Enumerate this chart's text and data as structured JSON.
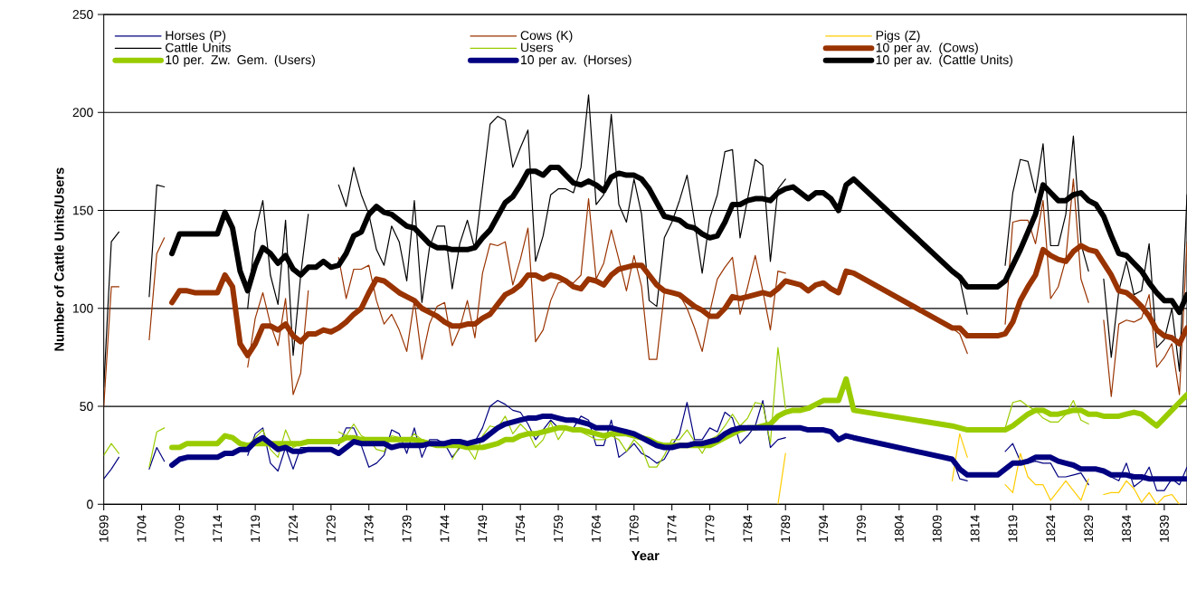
{
  "chart_data": {
    "type": "line",
    "xlabel": "Year",
    "ylabel": "Number of Cattle Units/Users",
    "xlim": [
      1699,
      1842
    ],
    "ylim": [
      0,
      250
    ],
    "xticks": [
      1699,
      1704,
      1709,
      1714,
      1719,
      1724,
      1729,
      1734,
      1739,
      1744,
      1749,
      1754,
      1759,
      1764,
      1769,
      1774,
      1779,
      1784,
      1789,
      1794,
      1799,
      1804,
      1809,
      1814,
      1819,
      1824,
      1829,
      1834,
      1839
    ],
    "yticks": [
      0,
      50,
      100,
      150,
      200,
      250
    ],
    "grid": "y",
    "legend": "top",
    "x": [
      1708,
      1709,
      1710,
      1711,
      1712,
      1713,
      1714,
      1715,
      1716,
      1717,
      1718,
      1719,
      1720,
      1721,
      1722,
      1723,
      1724,
      1725,
      1726,
      1727,
      1728,
      1729,
      1730,
      1731,
      1732,
      1733,
      1734,
      1735,
      1736,
      1737,
      1738,
      1739,
      1740,
      1741,
      1742,
      1743,
      1744,
      1745,
      1746,
      1747,
      1748,
      1749,
      1750,
      1751,
      1752,
      1753,
      1754,
      1755,
      1756,
      1757,
      1758,
      1759,
      1760,
      1761,
      1762,
      1763,
      1764,
      1765,
      1766,
      1767,
      1768,
      1769,
      1770,
      1771,
      1772,
      1773,
      1774,
      1775,
      1776,
      1777,
      1778,
      1779,
      1780,
      1781,
      1782,
      1783,
      1784,
      1785,
      1786,
      1787,
      1788,
      1789,
      1790,
      1791,
      1792,
      1793,
      1794,
      1795,
      1796,
      1797,
      1798,
      1811,
      1812,
      1813,
      1814,
      1815,
      1816,
      1817,
      1818,
      1819,
      1820,
      1821,
      1822,
      1823,
      1824,
      1825,
      1826,
      1827,
      1828,
      1829,
      1830,
      1831,
      1832,
      1833,
      1834,
      1835,
      1836,
      1837,
      1838,
      1839,
      1840,
      1841,
      1842
    ],
    "series": [
      {
        "name": "Horses (P)",
        "color": "#000080",
        "x": [
          1699,
          1700,
          1701,
          1702,
          1705,
          1706,
          1707,
          1708,
          1718,
          1719,
          1720,
          1721,
          1722,
          1723,
          1724,
          1725,
          1726,
          1728,
          1730,
          1731,
          1732,
          1733,
          1734,
          1735,
          1736,
          1737,
          1738,
          1739,
          1740,
          1741,
          1742,
          1743,
          1744,
          1745,
          1746,
          1747,
          1748,
          1749,
          1750,
          1751,
          1752,
          1753,
          1754,
          1755,
          1756,
          1757,
          1758,
          1759,
          1760,
          1761,
          1762,
          1763,
          1764,
          1765,
          1766,
          1767,
          1768,
          1769,
          1770,
          1771,
          1772,
          1773,
          1774,
          1775,
          1776,
          1777,
          1778,
          1779,
          1780,
          1781,
          1782,
          1783,
          1784,
          1785,
          1786,
          1787,
          1788,
          1789,
          1800,
          1811,
          1812,
          1813,
          1815,
          1818,
          1819,
          1820,
          1821,
          1822,
          1823,
          1824,
          1825,
          1826,
          1827,
          1828,
          1829,
          1830,
          1832,
          1833,
          1834,
          1835,
          1836,
          1837,
          1838,
          1839,
          1840,
          1841,
          1842
        ],
        "values": [
          13,
          18,
          24,
          null,
          18,
          29,
          22,
          null,
          25,
          36,
          39,
          21,
          17,
          29,
          18,
          29,
          29,
          null,
          30,
          39,
          39,
          30,
          19,
          21,
          25,
          38,
          36,
          26,
          39,
          24,
          33,
          33,
          31,
          24,
          29,
          32,
          32,
          39,
          50,
          53,
          51,
          48,
          47,
          41,
          33,
          38,
          43,
          39,
          null,
          39,
          45,
          43,
          30,
          30,
          43,
          24,
          27,
          31,
          26,
          24,
          21,
          23,
          30,
          36,
          52,
          33,
          33,
          39,
          37,
          47,
          44,
          31,
          35,
          40,
          53,
          29,
          33,
          34,
          null,
          24,
          13,
          12,
          null,
          27,
          31,
          22,
          21,
          22,
          21,
          21,
          14,
          14,
          15,
          16,
          10,
          null,
          14,
          12,
          21,
          9,
          12,
          19,
          7,
          7,
          13,
          10,
          19
        ]
      },
      {
        "name": "Cows (K)",
        "color": "#993300",
        "x": [
          1699,
          1700,
          1701,
          1702,
          1705,
          1706,
          1707,
          1708,
          1718,
          1719,
          1720,
          1721,
          1722,
          1723,
          1724,
          1725,
          1726,
          1728,
          1730,
          1731,
          1732,
          1733,
          1734,
          1735,
          1736,
          1737,
          1738,
          1739,
          1740,
          1741,
          1742,
          1743,
          1744,
          1745,
          1746,
          1747,
          1748,
          1749,
          1750,
          1751,
          1752,
          1753,
          1754,
          1755,
          1756,
          1757,
          1758,
          1759,
          1760,
          1761,
          1762,
          1763,
          1764,
          1765,
          1766,
          1767,
          1768,
          1769,
          1770,
          1771,
          1772,
          1773,
          1774,
          1775,
          1776,
          1777,
          1778,
          1779,
          1780,
          1781,
          1782,
          1783,
          1784,
          1785,
          1786,
          1787,
          1788,
          1789,
          1800,
          1811,
          1812,
          1813,
          1815,
          1818,
          1819,
          1820,
          1821,
          1822,
          1823,
          1824,
          1825,
          1826,
          1827,
          1828,
          1829,
          1830,
          1831,
          1832,
          1833,
          1834,
          1835,
          1836,
          1837,
          1838,
          1839,
          1840,
          1841,
          1842
        ],
        "values": [
          50,
          111,
          111,
          null,
          84,
          128,
          136,
          null,
          70,
          95,
          108,
          92,
          81,
          105,
          56,
          67,
          109,
          null,
          126,
          105,
          120,
          120,
          122,
          104,
          92,
          97,
          89,
          78,
          104,
          74,
          92,
          101,
          103,
          81,
          90,
          104,
          85,
          118,
          133,
          132,
          134,
          112,
          125,
          141,
          83,
          89,
          104,
          113,
          114,
          113,
          117,
          156,
          115,
          123,
          140,
          125,
          109,
          127,
          111,
          74,
          74,
          108,
          108,
          107,
          100,
          90,
          78,
          98,
          115,
          121,
          126,
          97,
          111,
          127,
          109,
          89,
          119,
          118,
          null,
          90,
          87,
          77,
          null,
          92,
          144,
          145,
          145,
          133,
          155,
          105,
          111,
          125,
          166,
          115,
          103,
          null,
          94,
          55,
          92,
          94,
          93,
          95,
          107,
          70,
          75,
          82,
          56,
          134
        ]
      },
      {
        "name": "Pigs (Z)",
        "color": "#ffcc00",
        "x": [
          1788,
          1789,
          1800,
          1811,
          1812,
          1813,
          1815,
          1818,
          1819,
          1820,
          1821,
          1822,
          1823,
          1824,
          1825,
          1826,
          1827,
          1828,
          1829,
          1830,
          1831,
          1832,
          1833,
          1834,
          1835,
          1836,
          1837,
          1838,
          1839,
          1840,
          1841
        ],
        "values": [
          0,
          26,
          null,
          12,
          36,
          24,
          null,
          10,
          6,
          26,
          14,
          10,
          10,
          2,
          7,
          12,
          7,
          2,
          13,
          null,
          5,
          6,
          6,
          12,
          8,
          1,
          6,
          0,
          4,
          5,
          0
        ]
      },
      {
        "name": "Cattle Units",
        "color": "#000000",
        "x": [
          1699,
          1700,
          1701,
          1702,
          1705,
          1706,
          1707,
          1708,
          1718,
          1719,
          1720,
          1721,
          1722,
          1723,
          1724,
          1725,
          1726,
          1728,
          1730,
          1731,
          1732,
          1733,
          1734,
          1735,
          1736,
          1737,
          1738,
          1739,
          1740,
          1741,
          1742,
          1743,
          1744,
          1745,
          1746,
          1747,
          1748,
          1749,
          1750,
          1751,
          1752,
          1753,
          1754,
          1755,
          1756,
          1757,
          1758,
          1759,
          1760,
          1761,
          1762,
          1763,
          1764,
          1765,
          1766,
          1767,
          1768,
          1769,
          1770,
          1771,
          1772,
          1773,
          1774,
          1775,
          1776,
          1777,
          1778,
          1779,
          1780,
          1781,
          1782,
          1783,
          1784,
          1785,
          1786,
          1787,
          1788,
          1789,
          1800,
          1811,
          1812,
          1813,
          1815,
          1818,
          1819,
          1820,
          1821,
          1822,
          1823,
          1824,
          1825,
          1826,
          1827,
          1828,
          1829,
          1830,
          1831,
          1832,
          1833,
          1834,
          1835,
          1836,
          1837,
          1838,
          1839,
          1840,
          1841,
          1842
        ],
        "values": [
          60,
          134,
          139,
          null,
          106,
          163,
          162,
          null,
          100,
          139,
          155,
          117,
          102,
          145,
          76,
          117,
          148,
          null,
          163,
          152,
          172,
          158,
          148,
          130,
          122,
          142,
          134,
          114,
          155,
          103,
          131,
          142,
          142,
          110,
          133,
          145,
          130,
          162,
          194,
          198,
          196,
          172,
          182,
          191,
          124,
          137,
          158,
          161,
          161,
          159,
          172,
          209,
          153,
          158,
          199,
          153,
          144,
          166,
          148,
          104,
          101,
          136,
          144,
          155,
          168,
          144,
          118,
          146,
          158,
          180,
          181,
          136,
          156,
          176,
          173,
          124,
          161,
          166,
          null,
          120,
          115,
          97,
          null,
          122,
          159,
          176,
          175,
          159,
          184,
          132,
          132,
          148,
          188,
          133,
          119,
          null,
          115,
          75,
          109,
          124,
          107,
          109,
          133,
          80,
          84,
          100,
          68,
          158
        ]
      },
      {
        "name": "Users",
        "color": "#99cc00",
        "x": [
          1699,
          1700,
          1701,
          1702,
          1705,
          1706,
          1707,
          1708,
          1718,
          1719,
          1720,
          1721,
          1722,
          1723,
          1724,
          1725,
          1726,
          1728,
          1730,
          1731,
          1732,
          1733,
          1734,
          1735,
          1736,
          1737,
          1738,
          1739,
          1740,
          1741,
          1742,
          1743,
          1744,
          1745,
          1746,
          1747,
          1748,
          1749,
          1750,
          1751,
          1752,
          1753,
          1754,
          1755,
          1756,
          1757,
          1758,
          1759,
          1760,
          1761,
          1762,
          1763,
          1764,
          1765,
          1766,
          1767,
          1768,
          1769,
          1770,
          1771,
          1772,
          1773,
          1774,
          1775,
          1776,
          1777,
          1778,
          1779,
          1780,
          1781,
          1782,
          1783,
          1784,
          1785,
          1786,
          1787,
          1788,
          1789,
          1800,
          1818,
          1819,
          1820,
          1821,
          1822,
          1823,
          1824,
          1825,
          1826,
          1827,
          1828,
          1829
        ],
        "values": [
          25,
          31,
          26,
          null,
          19,
          37,
          39,
          null,
          30,
          34,
          38,
          28,
          24,
          38,
          29,
          31,
          33,
          null,
          37,
          35,
          41,
          35,
          33,
          28,
          27,
          35,
          34,
          32,
          36,
          33,
          32,
          null,
          null,
          23,
          30,
          29,
          23,
          35,
          40,
          39,
          45,
          36,
          41,
          37,
          29,
          33,
          42,
          33,
          39,
          37,
          37,
          35,
          33,
          33,
          35,
          33,
          27,
          33,
          29,
          19,
          19,
          25,
          33,
          33,
          38,
          32,
          26,
          33,
          35,
          40,
          46,
          40,
          44,
          52,
          51,
          31,
          80,
          49,
          null,
          39,
          52,
          53,
          50,
          48,
          44,
          42,
          42,
          46,
          53,
          43,
          41
        ]
      },
      {
        "name": "10 per av. (Cows)",
        "color": "#993300",
        "values": [
          103,
          109,
          109,
          108,
          108,
          108,
          108,
          117,
          111,
          82,
          76,
          82,
          91,
          91,
          89,
          92,
          86,
          83,
          87,
          87,
          89,
          88,
          90,
          93,
          97,
          100,
          108,
          115,
          114,
          111,
          108,
          106,
          104,
          100,
          98,
          96,
          93,
          91,
          91,
          92,
          92,
          95,
          97,
          102,
          107,
          109,
          112,
          117,
          117,
          115,
          117,
          116,
          114,
          111,
          110,
          115,
          114,
          112,
          117,
          120,
          121,
          122,
          122,
          117,
          112,
          109,
          108,
          107,
          104,
          101,
          99,
          96,
          96,
          100,
          106,
          105,
          106,
          107,
          108,
          107,
          110,
          114,
          113,
          112,
          109,
          112,
          113,
          110,
          108,
          119,
          118,
          90,
          90,
          86,
          86,
          86,
          86,
          86,
          87,
          93,
          104,
          111,
          117,
          130,
          127,
          125,
          124,
          129,
          132,
          130,
          129,
          123,
          117,
          109,
          108,
          105,
          101,
          96,
          89,
          86,
          85,
          82,
          90
        ]
      },
      {
        "name": "10 per. Zw. Gem. (Users)",
        "color": "#99cc00",
        "values": [
          29,
          29,
          31,
          31,
          31,
          31,
          31,
          35,
          34,
          31,
          30,
          31,
          31,
          31,
          31,
          31,
          31,
          31,
          32,
          32,
          32,
          32,
          32,
          34,
          34,
          33,
          33,
          33,
          33,
          33,
          33,
          33,
          33,
          32,
          31,
          30,
          30,
          30,
          30,
          29,
          29,
          29,
          30,
          31,
          33,
          33,
          35,
          36,
          36,
          37,
          38,
          39,
          39,
          38,
          38,
          37,
          36,
          35,
          36,
          36,
          36,
          35,
          34,
          33,
          31,
          30,
          30,
          30,
          30,
          30,
          30,
          30,
          32,
          34,
          36,
          38,
          39,
          39,
          40,
          41,
          45,
          47,
          48,
          48,
          49,
          51,
          53,
          53,
          53,
          64,
          48,
          40,
          39,
          38,
          38,
          38,
          38,
          38,
          38,
          40,
          43,
          46,
          48,
          48,
          46,
          46,
          47,
          48,
          48,
          46,
          46,
          45,
          45,
          45,
          46,
          47,
          46,
          43,
          40,
          44,
          48,
          52,
          56
        ]
      },
      {
        "name": "10 per av. (Horses)",
        "color": "#000080",
        "values": [
          20,
          23,
          24,
          24,
          24,
          24,
          24,
          26,
          26,
          28,
          28,
          32,
          34,
          31,
          28,
          29,
          27,
          27,
          28,
          28,
          28,
          28,
          26,
          29,
          32,
          31,
          31,
          31,
          31,
          29,
          30,
          30,
          30,
          30,
          31,
          31,
          31,
          32,
          32,
          31,
          32,
          33,
          36,
          39,
          41,
          42,
          43,
          44,
          44,
          45,
          45,
          44,
          43,
          43,
          42,
          41,
          39,
          39,
          39,
          38,
          37,
          36,
          34,
          32,
          30,
          29,
          29,
          30,
          30,
          31,
          31,
          32,
          33,
          36,
          38,
          39,
          39,
          39,
          39,
          39,
          39,
          39,
          39,
          39,
          38,
          38,
          38,
          37,
          33,
          35,
          34,
          23,
          18,
          15,
          15,
          15,
          15,
          15,
          18,
          21,
          21,
          22,
          24,
          24,
          24,
          22,
          21,
          20,
          18,
          18,
          18,
          17,
          15,
          15,
          15,
          14,
          14,
          13,
          13,
          13,
          13,
          13,
          13
        ]
      },
      {
        "name": "10 per av. (Cattle Units)",
        "color": "#000000",
        "values": [
          128,
          138,
          138,
          138,
          138,
          138,
          138,
          149,
          141,
          119,
          109,
          122,
          131,
          128,
          123,
          127,
          120,
          117,
          121,
          121,
          124,
          121,
          122,
          128,
          137,
          139,
          148,
          152,
          149,
          148,
          145,
          142,
          141,
          137,
          133,
          131,
          131,
          130,
          130,
          130,
          131,
          136,
          140,
          147,
          154,
          157,
          163,
          170,
          170,
          168,
          172,
          172,
          168,
          164,
          163,
          165,
          163,
          160,
          167,
          169,
          168,
          168,
          166,
          161,
          154,
          147,
          146,
          145,
          142,
          141,
          138,
          136,
          137,
          144,
          153,
          153,
          155,
          156,
          156,
          155,
          159,
          161,
          162,
          159,
          156,
          159,
          159,
          156,
          150,
          163,
          166,
          119,
          116,
          111,
          111,
          111,
          111,
          111,
          114,
          122,
          130,
          139,
          148,
          163,
          159,
          155,
          155,
          158,
          159,
          155,
          153,
          147,
          137,
          128,
          127,
          123,
          119,
          113,
          108,
          104,
          104,
          98,
          107
        ]
      }
    ]
  }
}
